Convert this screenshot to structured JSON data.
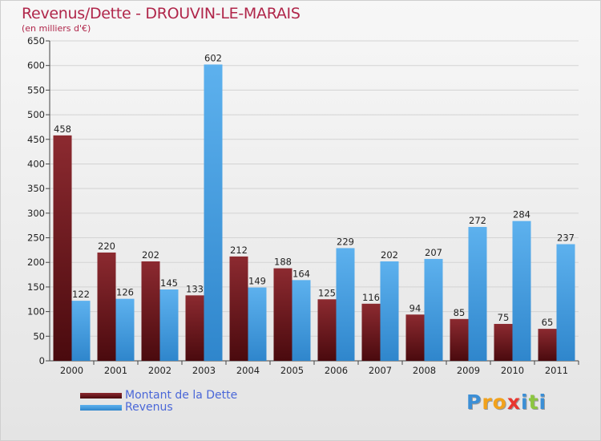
{
  "header": {
    "title": "Revenus/Dette - DROUVIN-LE-MARAIS",
    "subtitle": "(en milliers d'€)"
  },
  "chart_data": {
    "type": "bar",
    "title": "Revenus/Dette - DROUVIN-LE-MARAIS",
    "ylabel": "(en milliers d'€)",
    "categories": [
      "2000",
      "2001",
      "2002",
      "2003",
      "2004",
      "2005",
      "2006",
      "2007",
      "2008",
      "2009",
      "2010",
      "2011"
    ],
    "series": [
      {
        "name": "Montant de la Dette",
        "values": [
          458,
          220,
          202,
          133,
          212,
          188,
          125,
          116,
          94,
          85,
          75,
          65
        ],
        "color": "#7a1a1e"
      },
      {
        "name": "Revenus",
        "values": [
          122,
          126,
          145,
          602,
          149,
          164,
          229,
          202,
          207,
          272,
          284,
          237
        ],
        "color": "#4ea6e6"
      }
    ],
    "yticks": [
      0,
      50,
      100,
      150,
      200,
      250,
      300,
      350,
      400,
      450,
      500,
      550,
      600,
      650
    ],
    "ylim": [
      0,
      650
    ],
    "grid": true,
    "legend": "bottom-left"
  },
  "legend": {
    "items": [
      {
        "label": "Montant de la Dette"
      },
      {
        "label": "Revenus"
      }
    ]
  },
  "logo": {
    "text": "Proxiti"
  }
}
